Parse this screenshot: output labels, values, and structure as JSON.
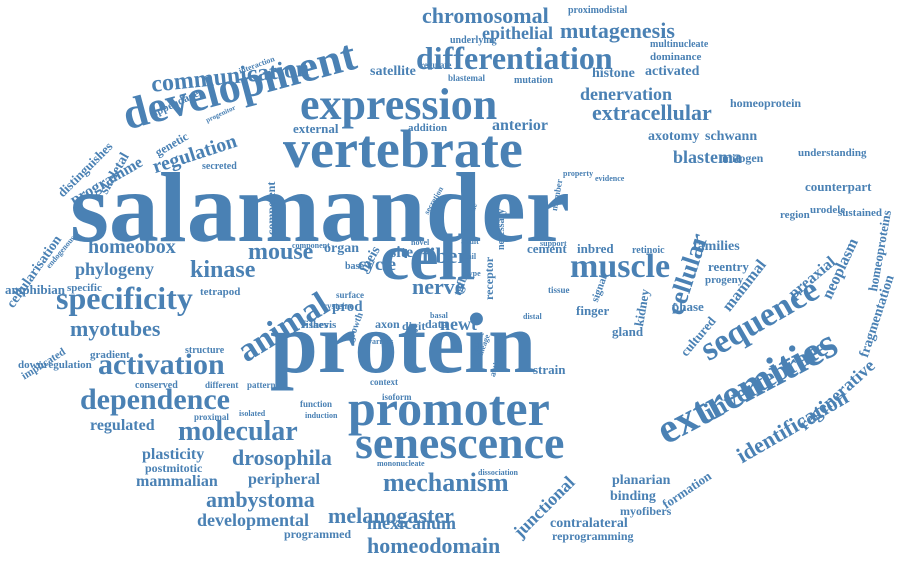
{
  "word_cloud": {
    "color": "#4a81b4",
    "words": [
      {
        "text": "salamander"
      },
      {
        "text": "protein"
      },
      {
        "text": "vertebrate"
      },
      {
        "text": "expression"
      },
      {
        "text": "development"
      },
      {
        "text": "cell"
      },
      {
        "text": "promoter"
      },
      {
        "text": "senescence"
      },
      {
        "text": "extremities"
      },
      {
        "text": "sequence"
      },
      {
        "text": "animal"
      },
      {
        "text": "muscle"
      },
      {
        "text": "specificity"
      },
      {
        "text": "differentiation"
      },
      {
        "text": "communication"
      },
      {
        "text": "chromosomal"
      },
      {
        "text": "mutagenesis"
      },
      {
        "text": "extracellular"
      },
      {
        "text": "regulation"
      },
      {
        "text": "activation"
      },
      {
        "text": "dependence"
      },
      {
        "text": "molecular"
      },
      {
        "text": "mechanism"
      },
      {
        "text": "cellular"
      },
      {
        "text": "invertebrate"
      },
      {
        "text": "identification"
      },
      {
        "text": "homeodomain"
      },
      {
        "text": "melanogaster"
      },
      {
        "text": "drosophila"
      },
      {
        "text": "ambystoma"
      },
      {
        "text": "developmental"
      },
      {
        "text": "mexicanum"
      },
      {
        "text": "myotubes"
      },
      {
        "text": "homeobox"
      },
      {
        "text": "kinase"
      },
      {
        "text": "mouse"
      },
      {
        "text": "phylogeny"
      },
      {
        "text": "nerve"
      },
      {
        "text": "fiber"
      },
      {
        "text": "newt"
      },
      {
        "text": "blastema"
      },
      {
        "text": "denervation"
      },
      {
        "text": "epithelial"
      },
      {
        "text": "axotomy"
      },
      {
        "text": "schwann"
      },
      {
        "text": "mitogen"
      },
      {
        "text": "anterior"
      },
      {
        "text": "histone"
      },
      {
        "text": "activated"
      },
      {
        "text": "satellite"
      },
      {
        "text": "regenerative"
      },
      {
        "text": "mammal"
      },
      {
        "text": "preaxial"
      },
      {
        "text": "neoplasm"
      },
      {
        "text": "fragmentation"
      },
      {
        "text": "homeoproteins"
      },
      {
        "text": "counterpart"
      },
      {
        "text": "urodele"
      },
      {
        "text": "region"
      },
      {
        "text": "sustained"
      },
      {
        "text": "understanding"
      },
      {
        "text": "homeoprotein"
      },
      {
        "text": "dominance"
      },
      {
        "text": "multinucleate"
      },
      {
        "text": "proximodistal"
      },
      {
        "text": "underlying"
      },
      {
        "text": "mutation"
      },
      {
        "text": "blastemal"
      },
      {
        "text": "regulate"
      },
      {
        "text": "external"
      },
      {
        "text": "addition"
      },
      {
        "text": "competent"
      },
      {
        "text": "secreted"
      },
      {
        "text": "genetic"
      },
      {
        "text": "progenitor"
      },
      {
        "text": "appendage"
      },
      {
        "text": "interaction"
      },
      {
        "text": "distinguishes"
      },
      {
        "text": "programme"
      },
      {
        "text": "skeletal"
      },
      {
        "text": "cellularisation"
      },
      {
        "text": "endogenous"
      },
      {
        "text": "amphibian"
      },
      {
        "text": "specific"
      },
      {
        "text": "tetrapod"
      },
      {
        "text": "implicated"
      },
      {
        "text": "gradient"
      },
      {
        "text": "downregulation"
      },
      {
        "text": "structure"
      },
      {
        "text": "conserved"
      },
      {
        "text": "different"
      },
      {
        "text": "pattern"
      },
      {
        "text": "proximal"
      },
      {
        "text": "isolated"
      },
      {
        "text": "regulated"
      },
      {
        "text": "plasticity"
      },
      {
        "text": "postmitotic"
      },
      {
        "text": "mammalian"
      },
      {
        "text": "peripheral"
      },
      {
        "text": "programmed"
      },
      {
        "text": "mononucleate"
      },
      {
        "text": "dissociation"
      },
      {
        "text": "planarian"
      },
      {
        "text": "binding"
      },
      {
        "text": "myofibers"
      },
      {
        "text": "formation"
      },
      {
        "text": "contralateral"
      },
      {
        "text": "reprogramming"
      },
      {
        "text": "junctional"
      },
      {
        "text": "cultured"
      },
      {
        "text": "phase"
      },
      {
        "text": "progeny"
      },
      {
        "text": "reentry"
      },
      {
        "text": "families"
      },
      {
        "text": "kidney"
      },
      {
        "text": "gland"
      },
      {
        "text": "finger"
      },
      {
        "text": "signal"
      },
      {
        "text": "strain"
      },
      {
        "text": "cement"
      },
      {
        "text": "inbred"
      },
      {
        "text": "retinoic"
      },
      {
        "text": "receptor"
      },
      {
        "text": "necessary"
      },
      {
        "text": "organ"
      },
      {
        "text": "site"
      },
      {
        "text": "cycle"
      },
      {
        "text": "meis"
      },
      {
        "text": "base"
      },
      {
        "text": "prod"
      },
      {
        "text": "fishes"
      },
      {
        "text": "laevis"
      },
      {
        "text": "axon"
      },
      {
        "text": "digit"
      },
      {
        "text": "data"
      },
      {
        "text": "basal"
      },
      {
        "text": "tgfb"
      },
      {
        "text": "context"
      },
      {
        "text": "isoform"
      },
      {
        "text": "function"
      },
      {
        "text": "induction"
      },
      {
        "text": "activity"
      },
      {
        "text": "residue"
      },
      {
        "text": "growth"
      },
      {
        "text": "various"
      },
      {
        "text": "component"
      },
      {
        "text": "novel"
      },
      {
        "text": "adult"
      },
      {
        "text": "underlie"
      },
      {
        "text": "secretion"
      },
      {
        "text": "evidence"
      },
      {
        "text": "property"
      },
      {
        "text": "member"
      },
      {
        "text": "support"
      },
      {
        "text": "tissue"
      },
      {
        "text": "distal"
      },
      {
        "text": "cysteine"
      },
      {
        "text": "surface"
      },
      {
        "text": "tail"
      },
      {
        "text": "type"
      },
      {
        "text": "lineage"
      }
    ]
  }
}
